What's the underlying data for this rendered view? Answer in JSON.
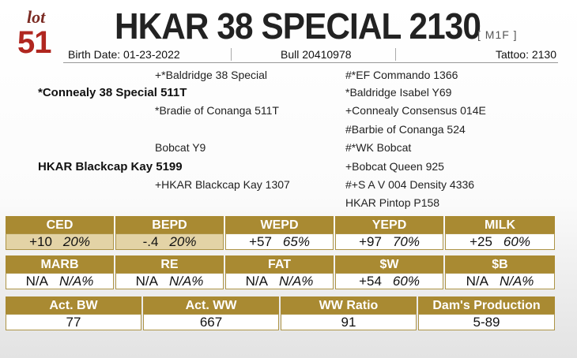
{
  "lot": {
    "word": "lot",
    "number": "51"
  },
  "title": "HKAR 38 SPECIAL 2130",
  "tag": "[ M1F ]",
  "info": {
    "birth_date": "Birth Date: 01-23-2022",
    "bull": "Bull 20410978",
    "tattoo": "Tattoo: 2130"
  },
  "pedigree": {
    "sire_sire": "+*Baldridge 38 Special",
    "sire": "*Connealy 38 Special 511T",
    "sire_dam": "*Bradie of Conanga 511T",
    "dam_sire": "Bobcat Y9",
    "dam": "HKAR Blackcap Kay 5199",
    "dam_dam": "+HKAR Blackcap Kay 1307",
    "right": [
      "#*EF Commando 1366",
      "*Baldridge Isabel Y69",
      "+Connealy Consensus 014E",
      "#Barbie of Conanga 524",
      "#*WK Bobcat",
      "+Bobcat Queen 925",
      "#+S A V 004 Density 4336",
      "HKAR Pintop P158"
    ]
  },
  "epd_row1": [
    {
      "label": "CED",
      "value": "+10",
      "pct": "20%"
    },
    {
      "label": "BEPD",
      "value": "-.4",
      "pct": "20%"
    },
    {
      "label": "WEPD",
      "value": "+57",
      "pct": "65%"
    },
    {
      "label": "YEPD",
      "value": "+97",
      "pct": "70%"
    },
    {
      "label": "MILK",
      "value": "+25",
      "pct": "60%"
    }
  ],
  "epd_row2": [
    {
      "label": "MARB",
      "value": "N/A",
      "pct": "N/A%"
    },
    {
      "label": "RE",
      "value": "N/A",
      "pct": "N/A%"
    },
    {
      "label": "FAT",
      "value": "N/A",
      "pct": "N/A%"
    },
    {
      "label": "$W",
      "value": "+54",
      "pct": "60%"
    },
    {
      "label": "$B",
      "value": "N/A",
      "pct": "N/A%"
    }
  ],
  "actuals": [
    {
      "label": "Act. BW",
      "value": "77"
    },
    {
      "label": "Act. WW",
      "value": "667"
    },
    {
      "label": "WW Ratio",
      "value": "91"
    },
    {
      "label": "Dam's Production",
      "value": "5-89"
    }
  ],
  "colors": {
    "gold": "#a98a32",
    "highlight": "#e3d3a6",
    "lot_red": "#b0261f"
  }
}
